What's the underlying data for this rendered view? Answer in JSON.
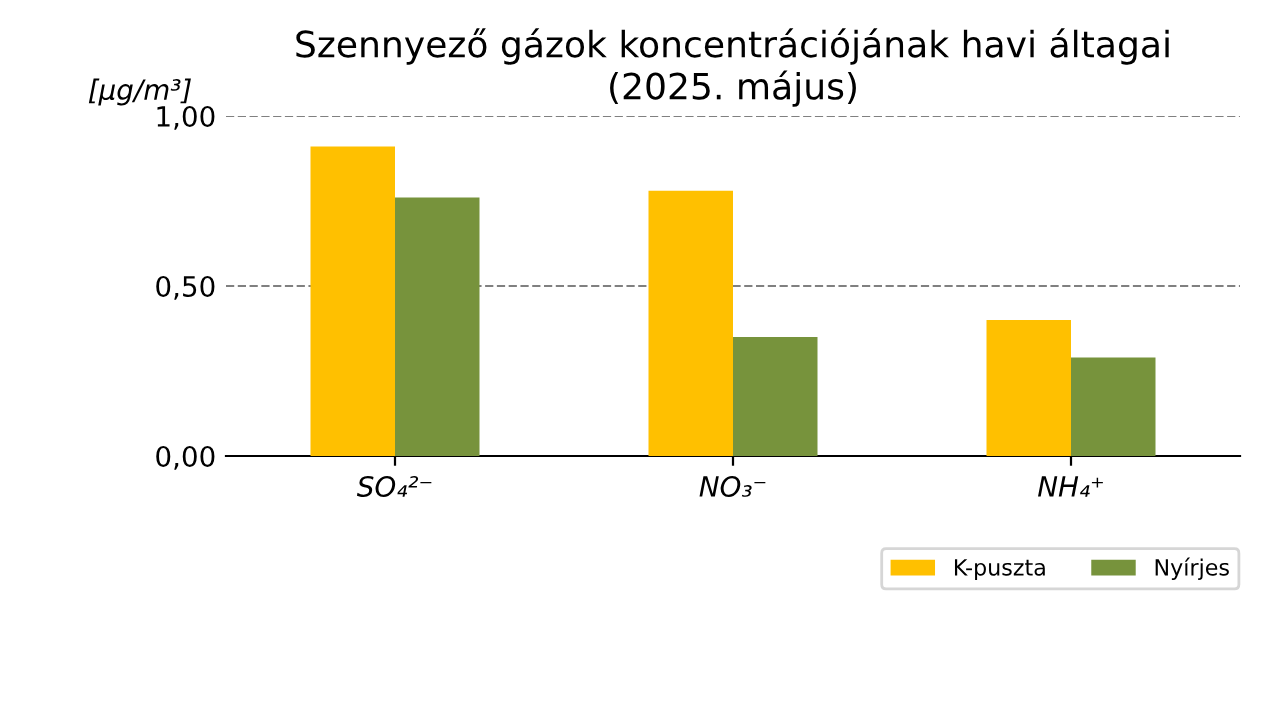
{
  "chart_data": {
    "type": "bar",
    "title": "Szennyező gázok koncentrációjának havi áltagai\n(2025. május)",
    "ylabel": "[μg/m³]",
    "categories": [
      "SO₄²⁻",
      "NO₃⁻",
      "NH₄⁺"
    ],
    "series": [
      {
        "name": "K-puszta",
        "color": "#ffc000",
        "values": [
          0.91,
          0.78,
          0.4
        ]
      },
      {
        "name": "Nyírjes",
        "color": "#77933c",
        "values": [
          0.76,
          0.35,
          0.29
        ]
      }
    ],
    "ylim": [
      0,
      1.0
    ],
    "yticks": [
      {
        "value": 0,
        "label": "0,00"
      },
      {
        "value": 0.5,
        "label": "0,50"
      },
      {
        "value": 1.0,
        "label": "1,00"
      }
    ],
    "grid": "y",
    "legend": "bottom right"
  }
}
